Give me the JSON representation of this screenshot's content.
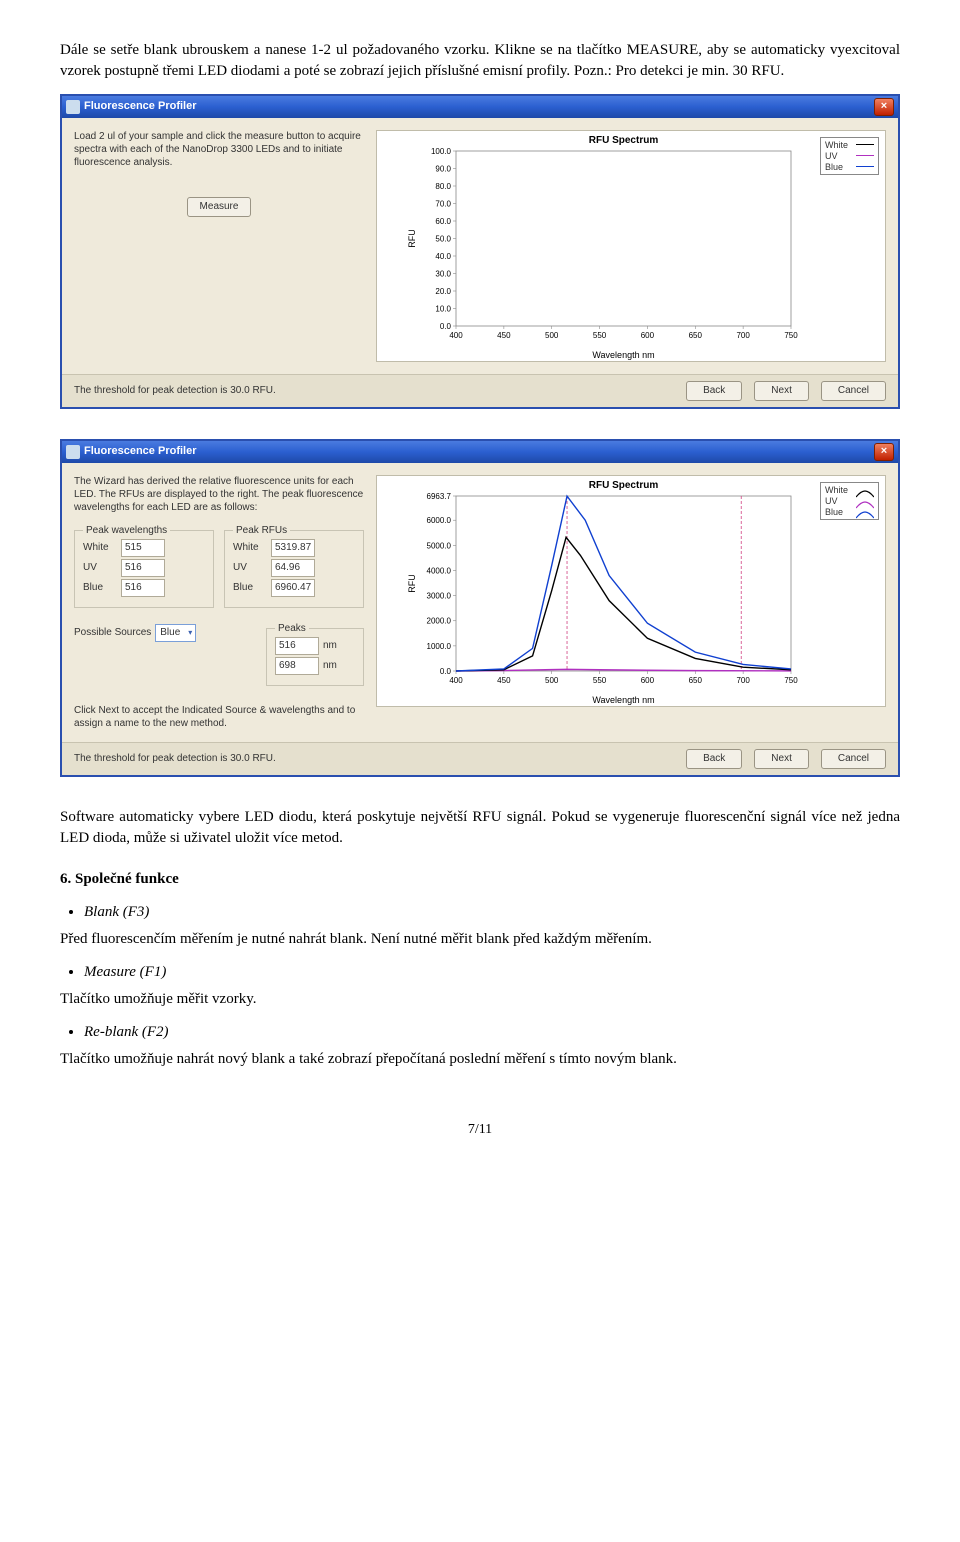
{
  "intro_paragraph": "Dále se setře blank ubrouskem a nanese 1-2 ul požadovaného vzorku. Klikne se na tlačítko MEASURE, aby se automaticky vyexcitoval vzorek postupně třemi LED diodami a poté se zobrazí jejich příslušné emisní profily. Pozn.: Pro detekci je min. 30 RFU.",
  "app": {
    "title": "Fluorescence Profiler",
    "close_glyph": "×",
    "threshold_text": "The threshold for peak detection is 30.0 RFU.",
    "back": "Back",
    "next": "Next",
    "cancel": "Cancel"
  },
  "shot1": {
    "left_text": "Load 2 ul of your sample and click the measure button to acquire spectra with each of the NanoDrop 3300 LEDs and to initiate fluorescence analysis.",
    "measure": "Measure"
  },
  "shot2": {
    "left_text": "The Wizard has derived the relative fluorescence units for each LED. The RFUs are displayed to the right. The peak fluorescence wavelengths for each LED are as follows:",
    "peak_wavelengths": "Peak wavelengths",
    "peak_rfus": "Peak RFUs",
    "labels": {
      "white": "White",
      "uv": "UV",
      "blue": "Blue"
    },
    "wl": {
      "white": "515",
      "uv": "516",
      "blue": "516"
    },
    "rfu": {
      "white": "5319.87",
      "uv": "64.96",
      "blue": "6960.47"
    },
    "possible_sources": "Possible Sources",
    "source_sel": "Blue",
    "peaks_title": "Peaks",
    "peaks": {
      "a": "516",
      "b": "698"
    },
    "nm": "nm",
    "click_next": "Click Next to accept the Indicated Source & wavelengths and to assign a name to the new method."
  },
  "chart": {
    "title": "RFU Spectrum",
    "ylabel": "RFU",
    "xlabel": "Wavelength nm",
    "x_ticks": [
      "400",
      "450",
      "500",
      "550",
      "600",
      "650",
      "700",
      "750"
    ],
    "legend": [
      "White",
      "UV",
      "Blue"
    ],
    "legend_colors": [
      "#000000",
      "#b030c0",
      "#1040d0"
    ],
    "c1": {
      "y_max_label": "100.0",
      "y_ticks": [
        "100.0",
        "90.0",
        "80.0",
        "70.0",
        "60.0",
        "50.0",
        "40.0",
        "30.0",
        "20.0",
        "10.0",
        "0.0"
      ]
    },
    "c2": {
      "y_max_label": "6963.7",
      "y_ticks": [
        "6963.7",
        "6000.0",
        "5000.0",
        "4000.0",
        "3000.0",
        "2000.0",
        "1000.0",
        "0.0"
      ],
      "series": {
        "white": [
          [
            400,
            0
          ],
          [
            450,
            50
          ],
          [
            480,
            600
          ],
          [
            500,
            3200
          ],
          [
            515,
            5320
          ],
          [
            530,
            4600
          ],
          [
            560,
            2800
          ],
          [
            600,
            1300
          ],
          [
            650,
            500
          ],
          [
            700,
            150
          ],
          [
            750,
            50
          ]
        ],
        "uv": [
          [
            400,
            0
          ],
          [
            450,
            20
          ],
          [
            500,
            55
          ],
          [
            516,
            65
          ],
          [
            550,
            50
          ],
          [
            600,
            30
          ],
          [
            650,
            15
          ],
          [
            750,
            5
          ]
        ],
        "blue": [
          [
            400,
            0
          ],
          [
            450,
            80
          ],
          [
            480,
            900
          ],
          [
            500,
            4200
          ],
          [
            516,
            6960
          ],
          [
            535,
            6000
          ],
          [
            560,
            3800
          ],
          [
            600,
            1900
          ],
          [
            650,
            750
          ],
          [
            700,
            260
          ],
          [
            750,
            80
          ]
        ]
      },
      "markers": [
        516,
        698
      ]
    }
  },
  "after_text": "Software automaticky vybere LED diodu, která poskytuje největší RFU signál. Pokud se vygeneruje fluorescenční signál více než jedna LED dioda, může si uživatel uložit více metod.",
  "section_title": "6.    Společné funkce",
  "items": [
    {
      "bullet": "Blank (F3)",
      "text": "Před fluorescenčím měřením je nutné nahrát blank. Není nutné měřit blank před každým měřením."
    },
    {
      "bullet": "Measure (F1)",
      "text": "Tlačítko umožňuje měřit vzorky."
    },
    {
      "bullet": "Re-blank (F2)",
      "text": "Tlačítko umožňuje nahrát nový blank a také zobrazí přepočítaná poslední měření s tímto novým blank."
    }
  ],
  "pagenum": "7/11"
}
